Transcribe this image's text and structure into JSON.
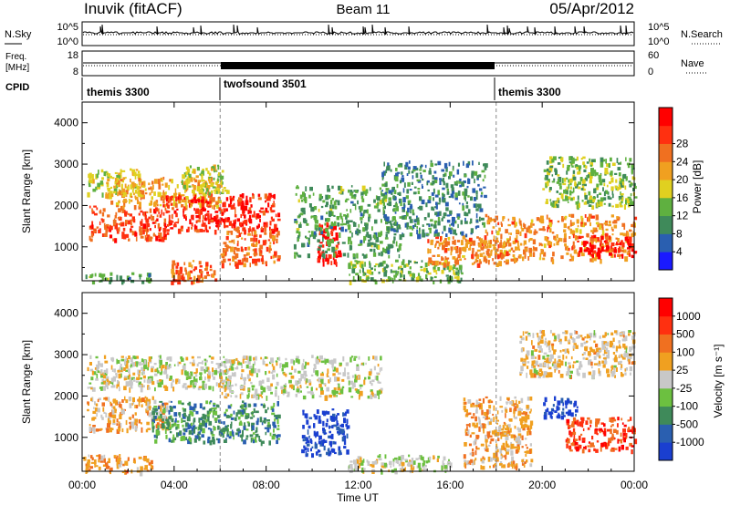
{
  "header": {
    "left": "Inuvik (fitACF)",
    "center": "Beam 11",
    "right": "05/Apr/2012"
  },
  "top_panels": {
    "nsky_label": "N.Sky",
    "nsky_ticks": [
      "10^5",
      "10^0"
    ],
    "nsearch_label": "N.Search",
    "nsearch_ticks": [
      "10^5",
      "10^0"
    ],
    "freq_label_1": "Freq.",
    "freq_label_2": "[MHz]",
    "freq_ticks": [
      "18",
      "8"
    ],
    "nave_label": "Nave",
    "nave_ticks": [
      "60",
      "0"
    ],
    "cpid_label": "CPID",
    "cpid_segments": [
      {
        "start_hour": 0,
        "label": "themis 3300"
      },
      {
        "start_hour": 6,
        "label": "twofsound 3501"
      },
      {
        "start_hour": 18,
        "label": "themis 3300"
      }
    ]
  },
  "chart_data": [
    {
      "type": "heatmap",
      "title": "",
      "xlabel": "",
      "ylabel": "Slant Range [km]",
      "x_ticks": [
        "00:00",
        "04:00",
        "08:00",
        "12:00",
        "16:00",
        "20:00",
        "00:00"
      ],
      "xlim": [
        0,
        24
      ],
      "y_ticks": [
        "1000",
        "2000",
        "3000",
        "4000"
      ],
      "ylim": [
        180,
        4500
      ],
      "colorbar": {
        "label": "Power [dB]",
        "ticks": [
          "4",
          "8",
          "12",
          "16",
          "20",
          "24",
          "28"
        ],
        "range": [
          0,
          30
        ],
        "colors": [
          "#1a1aff",
          "#2a5fb0",
          "#3f8a5a",
          "#5fb040",
          "#e0d020",
          "#f0a020",
          "#f07020",
          "#ff3010",
          "#ff0000"
        ]
      },
      "regions": [
        {
          "t0": 0.3,
          "t1": 3.8,
          "r0": 1200,
          "r1": 2000,
          "v": 24
        },
        {
          "t0": 0.2,
          "t1": 2.5,
          "r0": 2300,
          "r1": 2900,
          "v": 14
        },
        {
          "t0": 1.0,
          "t1": 6.0,
          "r0": 2000,
          "r1": 2700,
          "v": 18
        },
        {
          "t0": 3.5,
          "t1": 8.5,
          "r0": 1400,
          "r1": 2300,
          "v": 26
        },
        {
          "t0": 6.0,
          "t1": 8.5,
          "r0": 600,
          "r1": 1500,
          "v": 22
        },
        {
          "t0": 4.3,
          "t1": 6.3,
          "r0": 2300,
          "r1": 3000,
          "v": 14
        },
        {
          "t0": 3.8,
          "t1": 5.8,
          "r0": 180,
          "r1": 700,
          "v": 22
        },
        {
          "t0": 0.0,
          "t1": 3.0,
          "r0": 180,
          "r1": 400,
          "v": 10
        },
        {
          "t0": 10.2,
          "t1": 11.2,
          "r0": 600,
          "r1": 1600,
          "v": 28
        },
        {
          "t0": 9.2,
          "t1": 13.8,
          "r0": 800,
          "r1": 2500,
          "v": 10
        },
        {
          "t0": 11.5,
          "t1": 16.5,
          "r0": 180,
          "r1": 700,
          "v": 12
        },
        {
          "t0": 15.0,
          "t1": 18.5,
          "r0": 600,
          "r1": 1300,
          "v": 20
        },
        {
          "t0": 13.0,
          "t1": 17.5,
          "r0": 1300,
          "r1": 3100,
          "v": 8
        },
        {
          "t0": 17.5,
          "t1": 24.0,
          "r0": 700,
          "r1": 1800,
          "v": 20
        },
        {
          "t0": 21.5,
          "t1": 24.0,
          "r0": 800,
          "r1": 1300,
          "v": 28
        },
        {
          "t0": 20.0,
          "t1": 24.0,
          "r0": 2000,
          "r1": 3200,
          "v": 12
        }
      ]
    },
    {
      "type": "heatmap",
      "title": "",
      "xlabel": "Time UT",
      "ylabel": "Slant Range [km]",
      "x_ticks": [
        "00:00",
        "04:00",
        "08:00",
        "12:00",
        "16:00",
        "20:00",
        "00:00"
      ],
      "xlim": [
        0,
        24
      ],
      "y_ticks": [
        "1000",
        "2000",
        "3000",
        "4000"
      ],
      "ylim": [
        180,
        4500
      ],
      "colorbar": {
        "label": "Velocity [m s⁻¹]",
        "ticks": [
          "1000",
          "500",
          "100",
          "25",
          "-25",
          "-100",
          "-500",
          "-1000"
        ],
        "range": [
          0,
          9
        ],
        "colors": [
          "#1a3fd0",
          "#2a5fb0",
          "#3f8a5a",
          "#6cc040",
          "#c8c8c8",
          "#f0a020",
          "#f07020",
          "#ff3010",
          "#ff0000"
        ]
      },
      "regions": [
        {
          "t0": 0.2,
          "t1": 3.8,
          "r0": 1200,
          "r1": 2000,
          "v": 5.5
        },
        {
          "t0": 3.0,
          "t1": 8.5,
          "r0": 900,
          "r1": 1900,
          "v": 2.5
        },
        {
          "t0": 0.2,
          "t1": 6.5,
          "r0": 2200,
          "r1": 3000,
          "v": 4.5
        },
        {
          "t0": 6.0,
          "t1": 13.0,
          "r0": 2000,
          "r1": 3000,
          "v": 4.5
        },
        {
          "t0": 9.5,
          "t1": 11.5,
          "r0": 600,
          "r1": 1700,
          "v": 0.5
        },
        {
          "t0": 11.5,
          "t1": 16.0,
          "r0": 180,
          "r1": 600,
          "v": 4.5
        },
        {
          "t0": 16.5,
          "t1": 19.5,
          "r0": 300,
          "r1": 2000,
          "v": 5.5
        },
        {
          "t0": 21.0,
          "t1": 24.0,
          "r0": 700,
          "r1": 1500,
          "v": 7.5
        },
        {
          "t0": 20.0,
          "t1": 21.5,
          "r0": 1500,
          "r1": 2000,
          "v": 0.5
        },
        {
          "t0": 19.0,
          "t1": 24.0,
          "r0": 2500,
          "r1": 3600,
          "v": 5.0
        },
        {
          "t0": 0.0,
          "t1": 3.0,
          "r0": 180,
          "r1": 600,
          "v": 6.0
        }
      ]
    }
  ]
}
